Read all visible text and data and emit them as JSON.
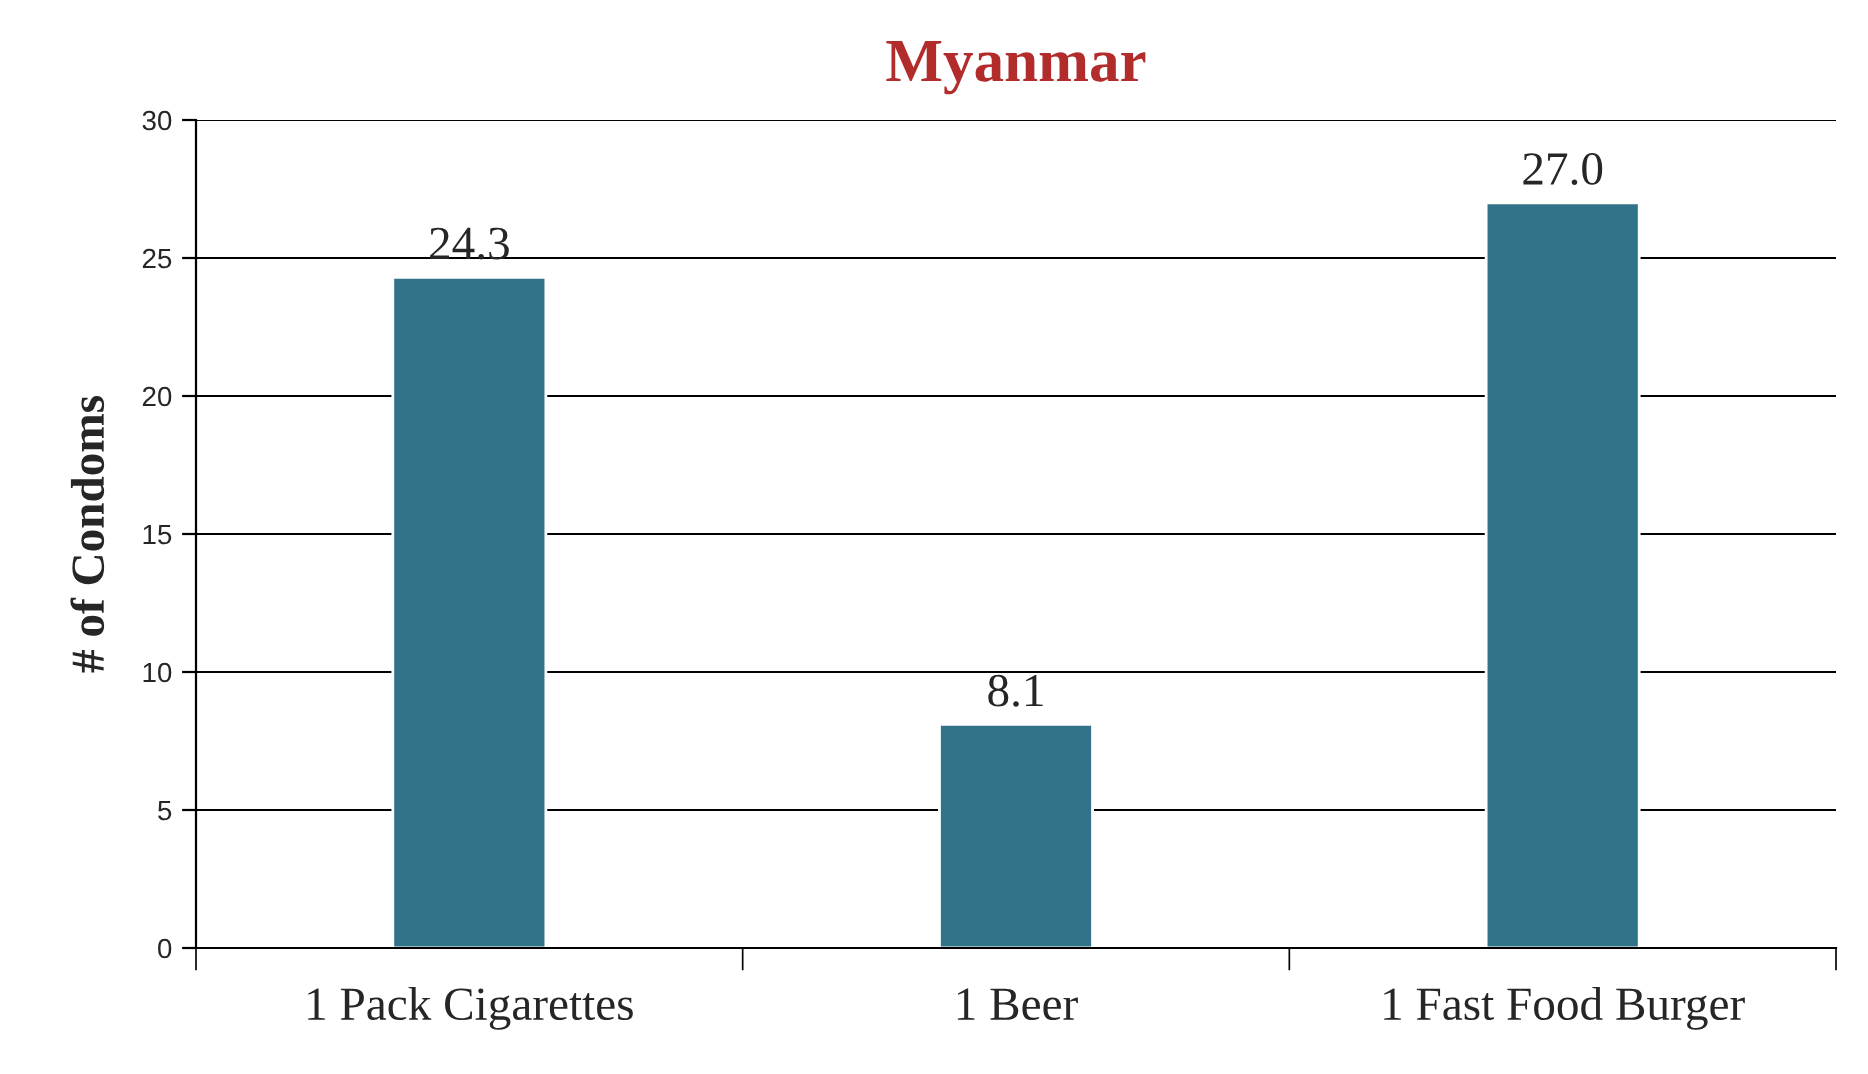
{
  "chart_data": {
    "type": "bar",
    "title": "Myanmar",
    "ylabel": "# of Condoms",
    "categories": [
      "1 Pack Cigarettes",
      "1 Beer",
      "1 Fast Food Burger"
    ],
    "values": [
      24.3,
      8.1,
      27.0
    ],
    "value_labels": [
      "24.3",
      "8.1",
      "27.0"
    ],
    "color": "#317389",
    "ylim": [
      0,
      30
    ],
    "yticks": [
      0,
      5,
      10,
      15,
      20,
      25,
      30
    ],
    "grid": "y",
    "legend": false
  }
}
